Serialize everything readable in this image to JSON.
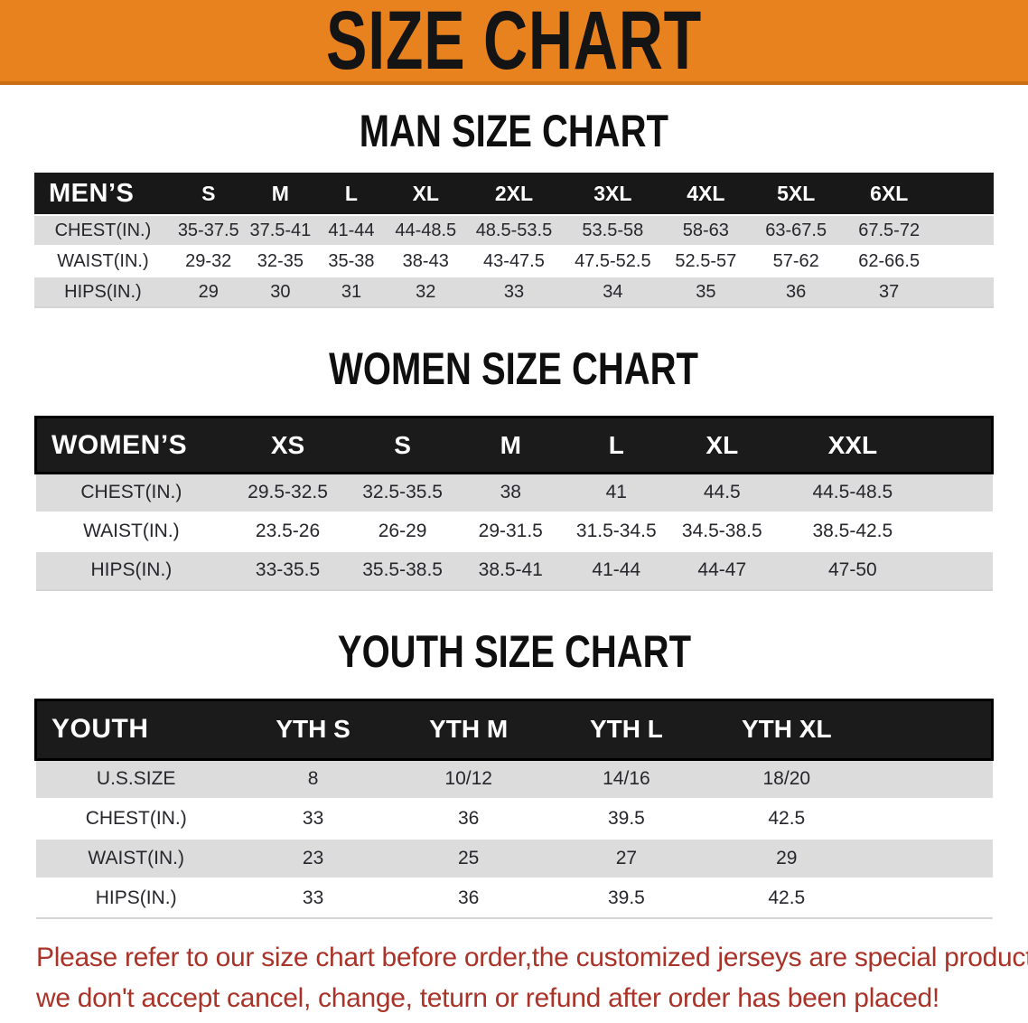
{
  "banner": {
    "title": "SIZE CHART"
  },
  "men": {
    "section_title": "MAN SIZE CHART",
    "header_label": "MEN’S",
    "sizes": [
      "S",
      "M",
      "L",
      "XL",
      "2XL",
      "3XL",
      "4XL",
      "5XL",
      "6XL"
    ],
    "rows": [
      {
        "label": "CHEST(IN.)",
        "values": [
          "35-37.5",
          "37.5-41",
          "41-44",
          "44-48.5",
          "48.5-53.5",
          "53.5-58",
          "58-63",
          "63-67.5",
          "67.5-72"
        ]
      },
      {
        "label": "WAIST(IN.)",
        "values": [
          "29-32",
          "32-35",
          "35-38",
          "38-43",
          "43-47.5",
          "47.5-52.5",
          "52.5-57",
          "57-62",
          "62-66.5"
        ]
      },
      {
        "label": "HIPS(IN.)",
        "values": [
          "29",
          "30",
          "31",
          "32",
          "33",
          "34",
          "35",
          "36",
          "37"
        ]
      }
    ]
  },
  "women": {
    "section_title": "WOMEN SIZE CHART",
    "header_label": "WOMEN’S",
    "sizes": [
      "XS",
      "S",
      "M",
      "L",
      "XL",
      "XXL"
    ],
    "rows": [
      {
        "label": "CHEST(IN.)",
        "values": [
          "29.5-32.5",
          "32.5-35.5",
          "38",
          "41",
          "44.5",
          "44.5-48.5"
        ]
      },
      {
        "label": "WAIST(IN.)",
        "values": [
          "23.5-26",
          "26-29",
          "29-31.5",
          "31.5-34.5",
          "34.5-38.5",
          "38.5-42.5"
        ]
      },
      {
        "label": "HIPS(IN.)",
        "values": [
          "33-35.5",
          "35.5-38.5",
          "38.5-41",
          "41-44",
          "44-47",
          "47-50"
        ]
      }
    ]
  },
  "youth": {
    "section_title": "YOUTH SIZE CHART",
    "header_label": "YOUTH",
    "sizes": [
      "YTH S",
      "YTH M",
      "YTH L",
      "YTH XL"
    ],
    "rows": [
      {
        "label": "U.S.SIZE",
        "values": [
          "8",
          "10/12",
          "14/16",
          "18/20"
        ]
      },
      {
        "label": "CHEST(IN.)",
        "values": [
          "33",
          "36",
          "39.5",
          "42.5"
        ]
      },
      {
        "label": "WAIST(IN.)",
        "values": [
          "23",
          "25",
          "27",
          "29"
        ]
      },
      {
        "label": "HIPS(IN.)",
        "values": [
          "33",
          "36",
          "39.5",
          "42.5"
        ]
      }
    ]
  },
  "notice": {
    "line1": "Please refer to our size chart before order,the customized jerseys are special products,",
    "line2": "we don't accept cancel, change, teturn or refund after order has been placed!"
  },
  "colors": {
    "banner_orange": "#E8821E",
    "banner_edge": "#C96E13",
    "header_black": "#181818",
    "row_gray": "#DCDCDC",
    "notice_red": "#A93328",
    "text_dark": "#26262C"
  }
}
